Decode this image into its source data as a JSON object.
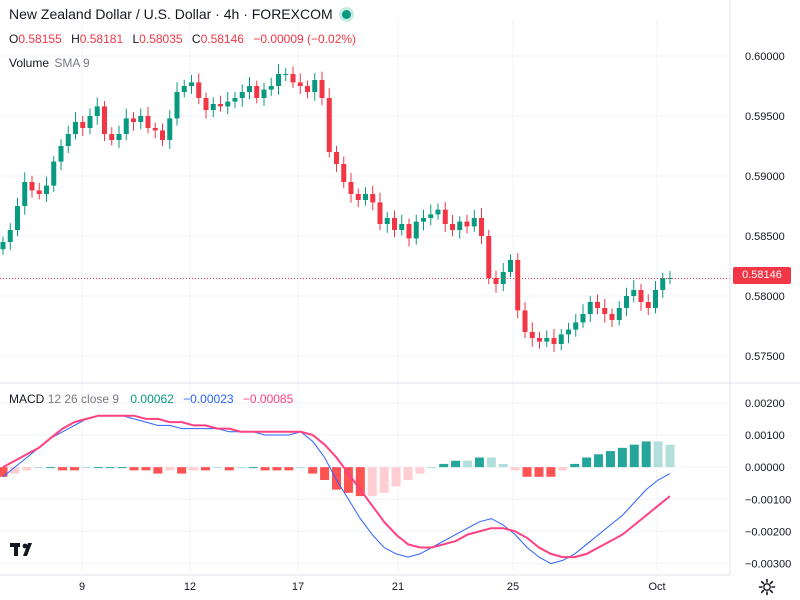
{
  "header": {
    "title": "New Zealand Dollar / U.S. Dollar · 4h · FOREXCOM",
    "ohlc": {
      "o_key": "O",
      "o": "0.58155",
      "h_key": "H",
      "h": "0.58181",
      "l_key": "L",
      "l": "0.58035",
      "c_key": "C",
      "c": "0.58146",
      "change": "−0.00009 (−0.02%)"
    },
    "volume_label": "Volume",
    "volume_sub": "SMA 9"
  },
  "macd_header": {
    "label": "MACD",
    "params": "12 26 close 9",
    "hist": "0.00062",
    "macd": "−0.00023",
    "signal": "−0.00085"
  },
  "price_tag": "0.58146",
  "colors": {
    "up": "#089981",
    "down": "#f23645",
    "hist_up_strong": "#26a69a",
    "hist_up_weak": "#b2dfdb",
    "hist_down_strong": "#ff5252",
    "hist_down_weak": "#ffcdd2",
    "macd_line": "#2962ff",
    "signal_line": "#ff4081"
  },
  "chart_data": [
    {
      "type": "candlestick",
      "title": "New Zealand Dollar / U.S. Dollar · 4h · FOREXCOM",
      "x_ticks": [
        "9",
        "12",
        "17",
        "21",
        "25",
        "Oct"
      ],
      "y_ticks": [
        "0.60000",
        "0.59500",
        "0.59000",
        "0.58500",
        "0.58000",
        "0.57500"
      ],
      "ylim": [
        0.573,
        0.603
      ],
      "last_price": 0.58146,
      "grid": true,
      "series": [
        {
          "name": "close",
          "values": [
            0.5845,
            0.5855,
            0.5875,
            0.5895,
            0.5888,
            0.5885,
            0.5892,
            0.5912,
            0.5925,
            0.5935,
            0.5945,
            0.594,
            0.595,
            0.5958,
            0.5935,
            0.593,
            0.5935,
            0.5948,
            0.5945,
            0.595,
            0.594,
            0.5938,
            0.593,
            0.5948,
            0.597,
            0.5975,
            0.5978,
            0.5965,
            0.5955,
            0.596,
            0.5958,
            0.5962,
            0.5965,
            0.597,
            0.5975,
            0.5965,
            0.5972,
            0.5975,
            0.5985,
            0.5985,
            0.5978,
            0.5975,
            0.597,
            0.598,
            0.5965,
            0.592,
            0.591,
            0.5895,
            0.5885,
            0.588,
            0.5885,
            0.5878,
            0.586,
            0.5865,
            0.5855,
            0.586,
            0.5848,
            0.5862,
            0.5865,
            0.5868,
            0.5872,
            0.586,
            0.5855,
            0.5862,
            0.5858,
            0.5865,
            0.585,
            0.5815,
            0.581,
            0.582,
            0.583,
            0.5788,
            0.577,
            0.5765,
            0.5762,
            0.5765,
            0.576,
            0.5768,
            0.5772,
            0.5778,
            0.5785,
            0.5795,
            0.579,
            0.5785,
            0.578,
            0.579,
            0.58,
            0.5805,
            0.5795,
            0.579,
            0.5805,
            0.5815,
            0.5815
          ]
        }
      ]
    },
    {
      "type": "line",
      "title": "MACD 12 26 close 9",
      "y_ticks": [
        "0.00200",
        "0.00100",
        "0.00000",
        "-0.00100",
        "-0.00200",
        "-0.00300"
      ],
      "ylim": [
        -0.0032,
        0.0024
      ],
      "series": [
        {
          "name": "MACD",
          "values": [
            -0.0003,
            0.0,
            0.0003,
            0.0006,
            0.0009,
            0.0011,
            0.0013,
            0.0015,
            0.0016,
            0.0016,
            0.0016,
            0.0015,
            0.0014,
            0.0013,
            0.0013,
            0.0012,
            0.0012,
            0.0012,
            0.0012,
            0.0011,
            0.0011,
            0.0011,
            0.001,
            0.001,
            0.001,
            0.0011,
            0.0008,
            0.0003,
            -0.0004,
            -0.001,
            -0.0016,
            -0.0021,
            -0.0025,
            -0.0027,
            -0.0028,
            -0.0027,
            -0.0025,
            -0.0023,
            -0.0021,
            -0.0019,
            -0.0017,
            -0.0016,
            -0.0018,
            -0.0021,
            -0.0025,
            -0.0028,
            -0.003,
            -0.0029,
            -0.0027,
            -0.0024,
            -0.0021,
            -0.0018,
            -0.0015,
            -0.0011,
            -0.0007,
            -0.0004,
            -0.0002
          ]
        },
        {
          "name": "Signal",
          "values": [
            0.0,
            0.0002,
            0.0004,
            0.0006,
            0.0009,
            0.0012,
            0.0014,
            0.0015,
            0.0016,
            0.0016,
            0.0016,
            0.0016,
            0.0015,
            0.0015,
            0.0014,
            0.0014,
            0.0013,
            0.0013,
            0.0012,
            0.0012,
            0.0011,
            0.0011,
            0.0011,
            0.0011,
            0.0011,
            0.0011,
            0.001,
            0.0007,
            0.0003,
            -0.0002,
            -0.0007,
            -0.0012,
            -0.0017,
            -0.0021,
            -0.0024,
            -0.0025,
            -0.0025,
            -0.0024,
            -0.0023,
            -0.0021,
            -0.002,
            -0.0019,
            -0.0019,
            -0.002,
            -0.0022,
            -0.0025,
            -0.0027,
            -0.0028,
            -0.0028,
            -0.0027,
            -0.0025,
            -0.0023,
            -0.0021,
            -0.0018,
            -0.0015,
            -0.0012,
            -0.0009
          ]
        }
      ]
    }
  ]
}
